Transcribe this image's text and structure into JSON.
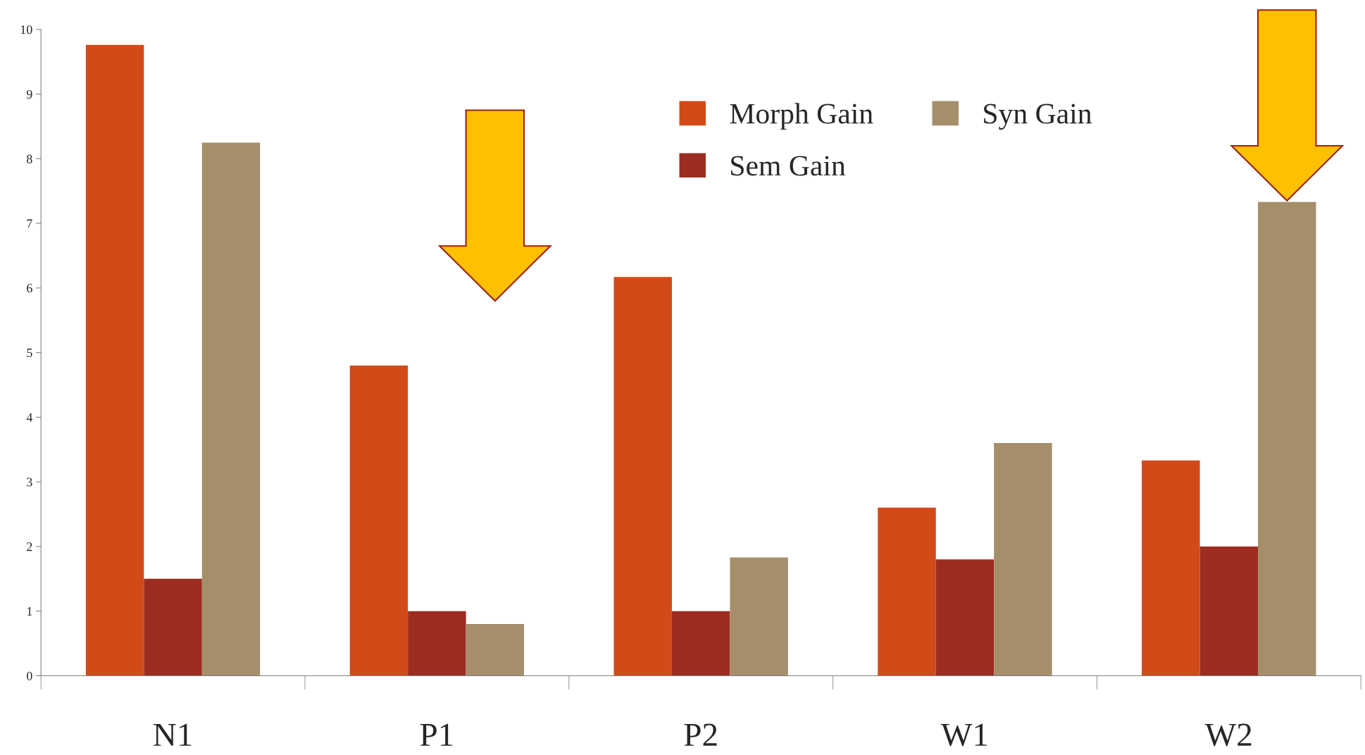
{
  "chart_data": {
    "type": "bar",
    "categories": [
      "N1",
      "P1",
      "P2",
      "W1",
      "W2"
    ],
    "series": [
      {
        "name": "Morph Gain",
        "color": "#d24a17",
        "values": [
          9.76,
          4.8,
          6.17,
          2.6,
          3.33
        ]
      },
      {
        "name": "Sem Gain",
        "color": "#9c2d20",
        "values": [
          1.5,
          1.0,
          1.0,
          1.8,
          2.0
        ]
      },
      {
        "name": "Syn Gain",
        "color": "#a58f6b",
        "values": [
          8.25,
          0.8,
          1.83,
          3.6,
          7.33
        ]
      }
    ],
    "ylim": [
      0,
      10
    ],
    "yticks": [
      0,
      1,
      2,
      3,
      4,
      5,
      6,
      7,
      8,
      9,
      10
    ],
    "grid": false,
    "legend": "top"
  }
}
